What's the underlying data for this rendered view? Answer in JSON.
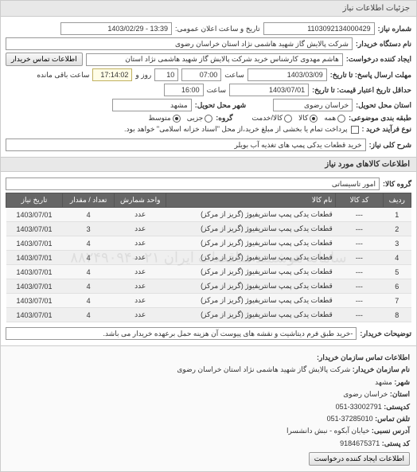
{
  "header": {
    "title": "جزئیات اطلاعات نیاز"
  },
  "top": {
    "req_no_label": "شماره نیاز:",
    "req_no": "1103092134000429",
    "announce_label": "تاریخ و ساعت اعلان عمومی:",
    "announce_val": "13:39 - 1403/02/29",
    "buyer_org_label": "نام دستگاه خریدار:",
    "buyer_org": "شرکت پالایش گاز شهید هاشمی نژاد   استان خراسان رضوی",
    "requester_label": "ایجاد کننده درخواست:",
    "requester": "هاشم مهدوی کارشناس خرید شرکت پالایش گاز شهید هاشمی نژاد   استان",
    "contact_btn": "اطلاعات تماس خریدار",
    "deadline_send_label": "مهلت ارسال پاسخ: تا تاریخ:",
    "deadline_send_date": "1403/03/09",
    "hour_label": "ساعت",
    "deadline_send_time": "07:00",
    "days_left_pre": "",
    "days_left": "10",
    "days_left_mid": "روز و",
    "time_left": "17:14:02",
    "time_left_post": "ساعت باقی مانده",
    "validity_label": "حداقل تاریخ اعتبار قیمت: تا تاریخ:",
    "validity_date": "1403/07/01",
    "validity_time": "16:00",
    "location_province_label": "استان محل تحویل:",
    "location_province": "خراسان رضوی",
    "location_city_label": "شهر محل تحویل:",
    "location_city": "مشهد",
    "classify_label": "طبقه بندی موضوعی:",
    "classify_opts": {
      "all": "همه",
      "goods": "کالا",
      "service": "کالا/خدمت"
    },
    "size_label": "گروه:",
    "size_opts": {
      "small": "جزیی",
      "medium": "متوسط"
    },
    "process_label": "نوع فرآیند خرید :",
    "process_text": "پرداخت تمام یا بخشی از مبلغ خرید،از محل \"اسناد خزانه اسلامی\" خواهد بود.",
    "desc_label": "شرح کلی نیاز:",
    "desc_val": "خرید قطعات یدکی پمپ های تغذیه آب بویلر"
  },
  "goods": {
    "section_title": "اطلاعات کالاهای مورد نیاز",
    "group_label": "گروه کالا:",
    "group_val": "امور تاسیساتی",
    "columns": {
      "row": "ردیف",
      "code": "کد کالا",
      "name": "نام کالا",
      "unit": "واحد شمارش",
      "qty": "تعداد / مقدار",
      "date": "تاریخ نیاز"
    },
    "rows": [
      {
        "r": "1",
        "code": "---",
        "name": "قطعات یدکی پمپ سانتریفیوژ (گریز از مرکز)",
        "unit": "عدد",
        "qty": "4",
        "date": "1403/07/01"
      },
      {
        "r": "2",
        "code": "---",
        "name": "قطعات یدکی پمپ سانتریفیوژ (گریز از مرکز)",
        "unit": "عدد",
        "qty": "3",
        "date": "1403/07/01"
      },
      {
        "r": "3",
        "code": "---",
        "name": "قطعات یدکی پمپ سانتریفیوژ (گریز از مرکز)",
        "unit": "عدد",
        "qty": "4",
        "date": "1403/07/01"
      },
      {
        "r": "4",
        "code": "---",
        "name": "قطعات یدکی پمپ سانتریفیوژ (گریز از مرکز)",
        "unit": "عدد",
        "qty": "4",
        "date": "1403/07/01"
      },
      {
        "r": "5",
        "code": "---",
        "name": "قطعات یدکی پمپ سانتریفیوژ (گریز از مرکز)",
        "unit": "عدد",
        "qty": "4",
        "date": "1403/07/01"
      },
      {
        "r": "6",
        "code": "---",
        "name": "قطعات یدکی پمپ سانتریفیوژ (گریز از مرکز)",
        "unit": "عدد",
        "qty": "4",
        "date": "1403/07/01"
      },
      {
        "r": "7",
        "code": "---",
        "name": "قطعات یدکی پمپ سانتریفیوژ (گریز از مرکز)",
        "unit": "عدد",
        "qty": "4",
        "date": "1403/07/01"
      },
      {
        "r": "8",
        "code": "---",
        "name": "قطعات یدکی پمپ سانتریفیوژ (گریز از مرکز)",
        "unit": "عدد",
        "qty": "4",
        "date": "1403/07/01"
      }
    ],
    "watermark": "سامانه هوشمند مناقصات ایران ۰۲۱-۸۸۲۴۹۰۹۴",
    "buyer_notes_label": "توضیحات خریدار:",
    "buyer_notes": "-خرید طبق فرم دیتاشیت و نقشه های پیوست آن هزینه حمل برعهده خریدار می باشد."
  },
  "footer": {
    "title": "اطلاعات تماس سازمان خریدار:",
    "org_label": "نام سازمان خریدار:",
    "org": "شرکت پالایش گاز شهید هاشمی نژاد استان خراسان رضوی",
    "city_label": "شهر:",
    "city": "مشهد",
    "province_label": "استان:",
    "province": "خراسان رضوی",
    "phone_label": "کدپستی:",
    "phone": "33002791-051",
    "fax_label": "تلفن تماس:",
    "fax": "37285010-051",
    "addr_label": "آدرس نسبی:",
    "addr": "خیابان آبکوه - نبش دانشسرا",
    "postcode_label": "کد پستی:",
    "postcode": "9184675371",
    "create_btn": "اطلاعات ایجاد کننده درخواست"
  }
}
